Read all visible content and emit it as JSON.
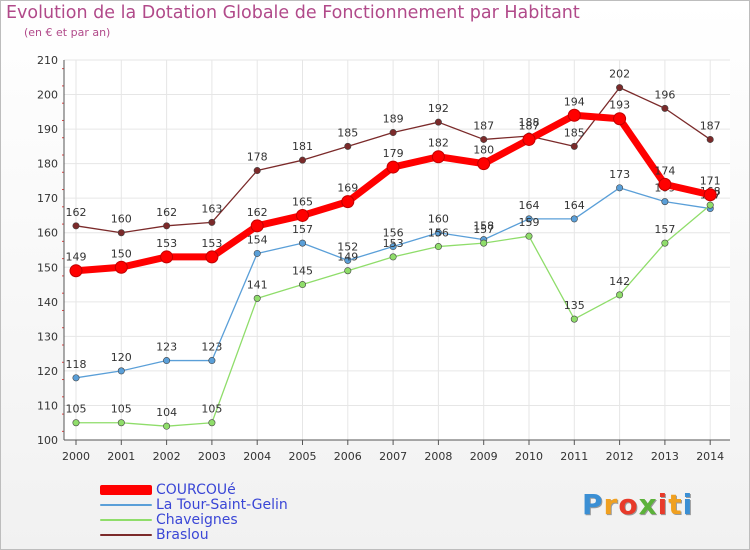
{
  "title": "Evolution de la Dotation Globale de Fonctionnement par Habitant",
  "subtitle": "(en € et par an)",
  "logo": {
    "text": "Proxiti",
    "letter_colors": [
      "#3b8fd4",
      "#f0a020",
      "#e83a2a",
      "#5cb23a",
      "#e83a2a",
      "#f0a020",
      "#3b8fd4"
    ]
  },
  "chart_data": {
    "type": "line",
    "x": [
      "2000",
      "2001",
      "2002",
      "2003",
      "2004",
      "2005",
      "2006",
      "2007",
      "2008",
      "2009",
      "2010",
      "2011",
      "2012",
      "2013",
      "2014"
    ],
    "ylim": [
      100,
      210
    ],
    "yticks": [
      100,
      110,
      120,
      130,
      140,
      150,
      160,
      170,
      180,
      190,
      200,
      210
    ],
    "grid": true,
    "series": [
      {
        "name": "Braslou",
        "color": "#7b2a2a",
        "values": [
          162,
          160,
          162,
          163,
          178,
          181,
          185,
          189,
          192,
          187,
          188,
          185,
          202,
          196,
          187
        ]
      },
      {
        "name": "La Tour-Saint-Gelin",
        "color": "#5a9fd8",
        "values": [
          118,
          120,
          123,
          123,
          154,
          157,
          152,
          156,
          160,
          158,
          164,
          164,
          173,
          169,
          167
        ]
      },
      {
        "name": "Chaveignes",
        "color": "#8fdd6a",
        "values": [
          105,
          105,
          104,
          105,
          141,
          145,
          149,
          153,
          156,
          157,
          159,
          135,
          142,
          157,
          168
        ]
      },
      {
        "name": "COURCOUé",
        "color": "#ff0000",
        "values": [
          149,
          150,
          153,
          153,
          162,
          165,
          169,
          179,
          182,
          180,
          187,
          194,
          193,
          174,
          171
        ]
      }
    ]
  },
  "legend": [
    {
      "label": "COURCOUé",
      "color": "#ff0000"
    },
    {
      "label": "La Tour-Saint-Gelin",
      "color": "#5a9fd8"
    },
    {
      "label": "Chaveignes",
      "color": "#8fdd6a"
    },
    {
      "label": "Braslou",
      "color": "#7b2a2a"
    }
  ]
}
